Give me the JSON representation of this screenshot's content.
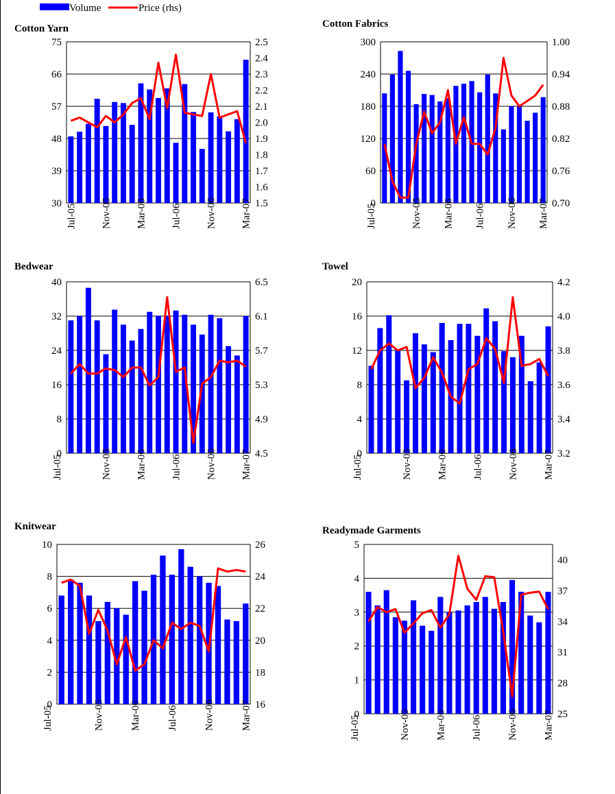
{
  "legend": {
    "volume_label": "Volume",
    "price_label": "Price (rhs)"
  },
  "colors": {
    "bar": "#0000ff",
    "line": "#ff0000",
    "grid": "#000000"
  },
  "chart_data": [
    {
      "type": "bar",
      "title": "Cotton Yarn",
      "y_ticks": [
        "30",
        "39",
        "48",
        "57",
        "66",
        "75"
      ],
      "ylim": [
        30,
        75
      ],
      "y2_ticks": [
        "1.5",
        "1.6",
        "1.7",
        "1.8",
        "1.9",
        "2.0",
        "2.1",
        "2.2",
        "2.3",
        "2.4",
        "2.5"
      ],
      "y2lim": [
        1.5,
        2.5
      ],
      "x_ticks": [
        "Jul-05",
        "Nov-05",
        "Mar-06",
        "Jul-06",
        "Nov-06",
        "Mar-07"
      ],
      "series": [
        {
          "name": "Volume",
          "type": "bar",
          "values": [
            48.6,
            49.9,
            52.1,
            59.1,
            51.5,
            58.2,
            57.9,
            51.8,
            63.4,
            61.7,
            59.3,
            62.0,
            46.8,
            63.2,
            55.4,
            45.1,
            55.3,
            54.2,
            50.0,
            53.4,
            70.0
          ]
        },
        {
          "name": "Price (rhs)",
          "type": "line",
          "values": [
            2.01,
            2.03,
            2.0,
            1.97,
            2.04,
            2.0,
            2.05,
            2.12,
            2.15,
            2.02,
            2.37,
            2.09,
            2.42,
            2.06,
            2.05,
            2.04,
            2.3,
            2.03,
            2.05,
            2.07,
            1.87
          ]
        }
      ]
    },
    {
      "type": "bar",
      "title": "Cotton Fabrics",
      "y_ticks": [
        "0",
        "60",
        "120",
        "180",
        "240",
        "300"
      ],
      "ylim": [
        0,
        300
      ],
      "y2_ticks": [
        "0.70",
        "0.76",
        "0.82",
        "0.88",
        "0.94",
        "1.00"
      ],
      "y2lim": [
        0.7,
        1.0
      ],
      "x_ticks": [
        "Jul-05",
        "Nov-05",
        "Mar-06",
        "Jul-06",
        "Nov-06",
        "Mar-07"
      ],
      "series": [
        {
          "name": "Volume",
          "type": "bar",
          "values": [
            204,
            239,
            283,
            246,
            184,
            203,
            201,
            189,
            195,
            218,
            222,
            227,
            206,
            239,
            204,
            137,
            180,
            180,
            153,
            168,
            197
          ]
        },
        {
          "name": "Price (rhs)",
          "type": "line",
          "values": [
            0.81,
            0.74,
            0.71,
            0.71,
            0.81,
            0.87,
            0.83,
            0.85,
            0.91,
            0.81,
            0.86,
            0.81,
            0.81,
            0.79,
            0.84,
            0.97,
            0.9,
            0.88,
            0.89,
            0.9,
            0.92
          ]
        }
      ]
    },
    {
      "type": "bar",
      "title": "Bedwear",
      "y_ticks": [
        "0",
        "8",
        "16",
        "24",
        "32",
        "40"
      ],
      "ylim": [
        0,
        40
      ],
      "y2_ticks": [
        "4.5",
        "4.9",
        "5.3",
        "5.7",
        "6.1",
        "6.5"
      ],
      "y2lim": [
        4.5,
        6.5
      ],
      "x_ticks": [
        "Jul-05",
        "Nov-05",
        "Mar-06",
        "Jul-06",
        "Nov-06",
        "Mar-07"
      ],
      "series": [
        {
          "name": "Volume",
          "type": "bar",
          "values": [
            31,
            32,
            38.6,
            31,
            23.1,
            33.5,
            30,
            26.3,
            29,
            33,
            32.1,
            32,
            33.3,
            32.3,
            30,
            27.7,
            32.3,
            31.5,
            25,
            22.8,
            32
          ]
        },
        {
          "name": "Price (rhs)",
          "type": "line",
          "values": [
            5.43,
            5.54,
            5.43,
            5.43,
            5.49,
            5.47,
            5.39,
            5.5,
            5.5,
            5.29,
            5.39,
            6.32,
            5.45,
            5.5,
            4.62,
            5.31,
            5.39,
            5.58,
            5.56,
            5.58,
            5.51
          ]
        }
      ]
    },
    {
      "type": "bar",
      "title": "Towel",
      "y_ticks": [
        "0",
        "4",
        "8",
        "12",
        "16",
        "20"
      ],
      "ylim": [
        0,
        20
      ],
      "y2_ticks": [
        "3.2",
        "3.4",
        "3.6",
        "3.8",
        "4.0",
        "4.2"
      ],
      "y2lim": [
        3.2,
        4.2
      ],
      "x_ticks": [
        "Jul-05",
        "Nov-05",
        "Mar-06",
        "Jul-06",
        "Nov-06",
        "Mar-07"
      ],
      "series": [
        {
          "name": "Volume",
          "type": "bar",
          "values": [
            10.2,
            14.6,
            16.1,
            12.1,
            8.5,
            14,
            12.7,
            11.8,
            15.2,
            13.2,
            15.1,
            15.1,
            13.7,
            16.9,
            15.4,
            11.9,
            11.2,
            13.7,
            8.4,
            10.6,
            14.8
          ]
        },
        {
          "name": "Price (rhs)",
          "type": "line",
          "values": [
            3.69,
            3.8,
            3.84,
            3.8,
            3.82,
            3.58,
            3.64,
            3.76,
            3.67,
            3.53,
            3.49,
            3.69,
            3.72,
            3.87,
            3.81,
            3.61,
            4.11,
            3.71,
            3.72,
            3.75,
            3.65
          ]
        }
      ]
    },
    {
      "type": "bar",
      "title": "Knitwear",
      "y_ticks": [
        "0",
        "2",
        "4",
        "6",
        "8",
        "10"
      ],
      "ylim": [
        0,
        10
      ],
      "y2_ticks": [
        "16",
        "18",
        "20",
        "22",
        "24",
        "26"
      ],
      "y2lim": [
        16,
        26
      ],
      "x_ticks": [
        "Jul-05",
        "Nov-05",
        "Mar-06",
        "Jul-06",
        "Nov-06",
        "Mar-07"
      ],
      "series": [
        {
          "name": "Volume",
          "type": "bar",
          "values": [
            6.8,
            7.8,
            7.6,
            6.8,
            5.2,
            6.4,
            6.0,
            5.6,
            7.7,
            7.1,
            8.1,
            9.3,
            8.1,
            9.7,
            8.6,
            8.0,
            7.6,
            7.4,
            5.3,
            5.2,
            6.3
          ]
        },
        {
          "name": "Price (rhs)",
          "type": "line",
          "values": [
            23.6,
            23.8,
            23.4,
            20.4,
            21.9,
            20.6,
            18.5,
            20.2,
            18.1,
            18.5,
            20.0,
            19.5,
            21.1,
            20.7,
            21.1,
            20.9,
            19.3,
            24.5,
            24.3,
            24.4,
            24.3
          ]
        }
      ]
    },
    {
      "type": "bar",
      "title": "Readymade Garments",
      "y_ticks": [
        "0",
        "1",
        "2",
        "3",
        "4",
        "5"
      ],
      "ylim": [
        0,
        5
      ],
      "y2_ticks": [
        "25",
        "28",
        "31",
        "34",
        "37",
        "40"
      ],
      "y2lim": [
        25,
        41.5
      ],
      "x_ticks": [
        "Jul-05",
        "Nov-05",
        "Mar-06",
        "Jul-06",
        "Nov-06",
        "Mar-07"
      ],
      "series": [
        {
          "name": "Volume",
          "type": "bar",
          "values": [
            3.6,
            3.2,
            3.65,
            2.85,
            2.75,
            3.35,
            2.6,
            2.45,
            3.45,
            3.0,
            3.05,
            3.2,
            3.3,
            3.45,
            3.1,
            3.3,
            3.95,
            3.6,
            2.9,
            2.7,
            3.6
          ]
        },
        {
          "name": "Price (rhs)",
          "type": "line",
          "values": [
            34.0,
            35.4,
            34.9,
            35.2,
            32.9,
            33.8,
            34.8,
            35.1,
            33.4,
            34.7,
            40.4,
            37.2,
            36.1,
            38.4,
            38.3,
            33.0,
            26.7,
            36.6,
            36.8,
            36.9,
            35.2
          ]
        }
      ]
    }
  ]
}
